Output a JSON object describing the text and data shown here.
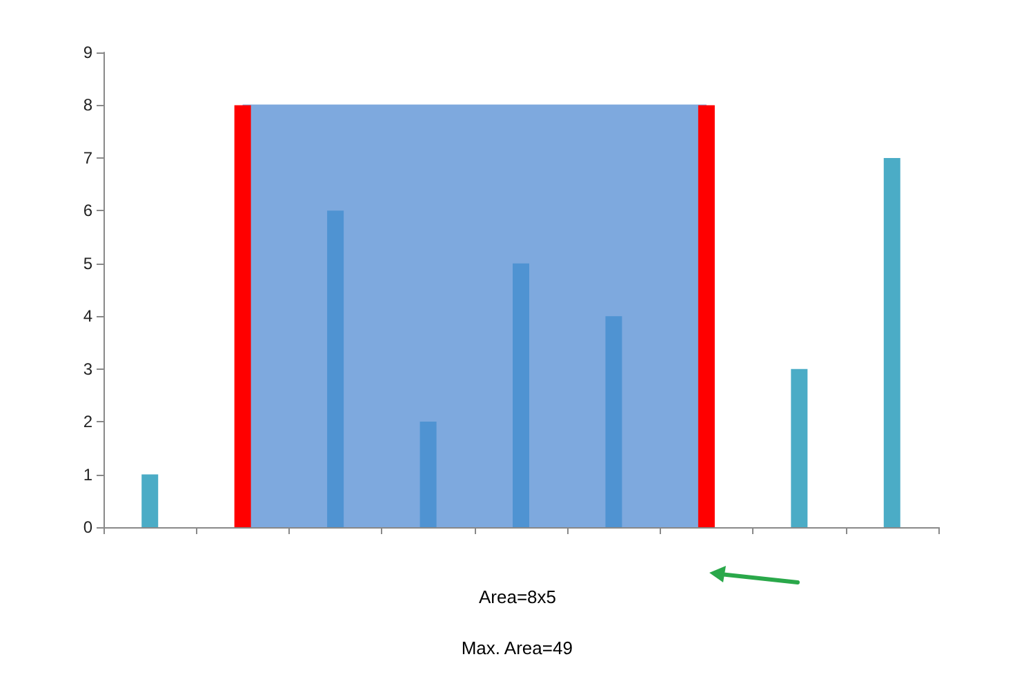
{
  "chart_data": {
    "type": "bar",
    "categories": [
      null,
      null,
      null,
      null,
      null,
      null,
      null,
      null,
      null
    ],
    "series": [
      {
        "type": "area",
        "color": "#7ea9de",
        "values": [
          null,
          8,
          8,
          8,
          8,
          8,
          8,
          null,
          null
        ]
      },
      {
        "colors": [
          "#4bacc6",
          "#ff0000",
          "#4f93d2",
          "#4f93d2",
          "#4f93d2",
          "#4f93d2",
          "#ff0000",
          "#4bacc6",
          "#4bacc6"
        ],
        "values": [
          1,
          8,
          6,
          2,
          5,
          4,
          8,
          3,
          7
        ]
      }
    ],
    "ylim": [
      0,
      9
    ],
    "yticks": [
      0,
      1,
      2,
      3,
      4,
      5,
      6,
      7,
      8,
      9
    ],
    "grid": false,
    "annotations": [
      "Area=8x5",
      "Max. Area=49"
    ]
  }
}
